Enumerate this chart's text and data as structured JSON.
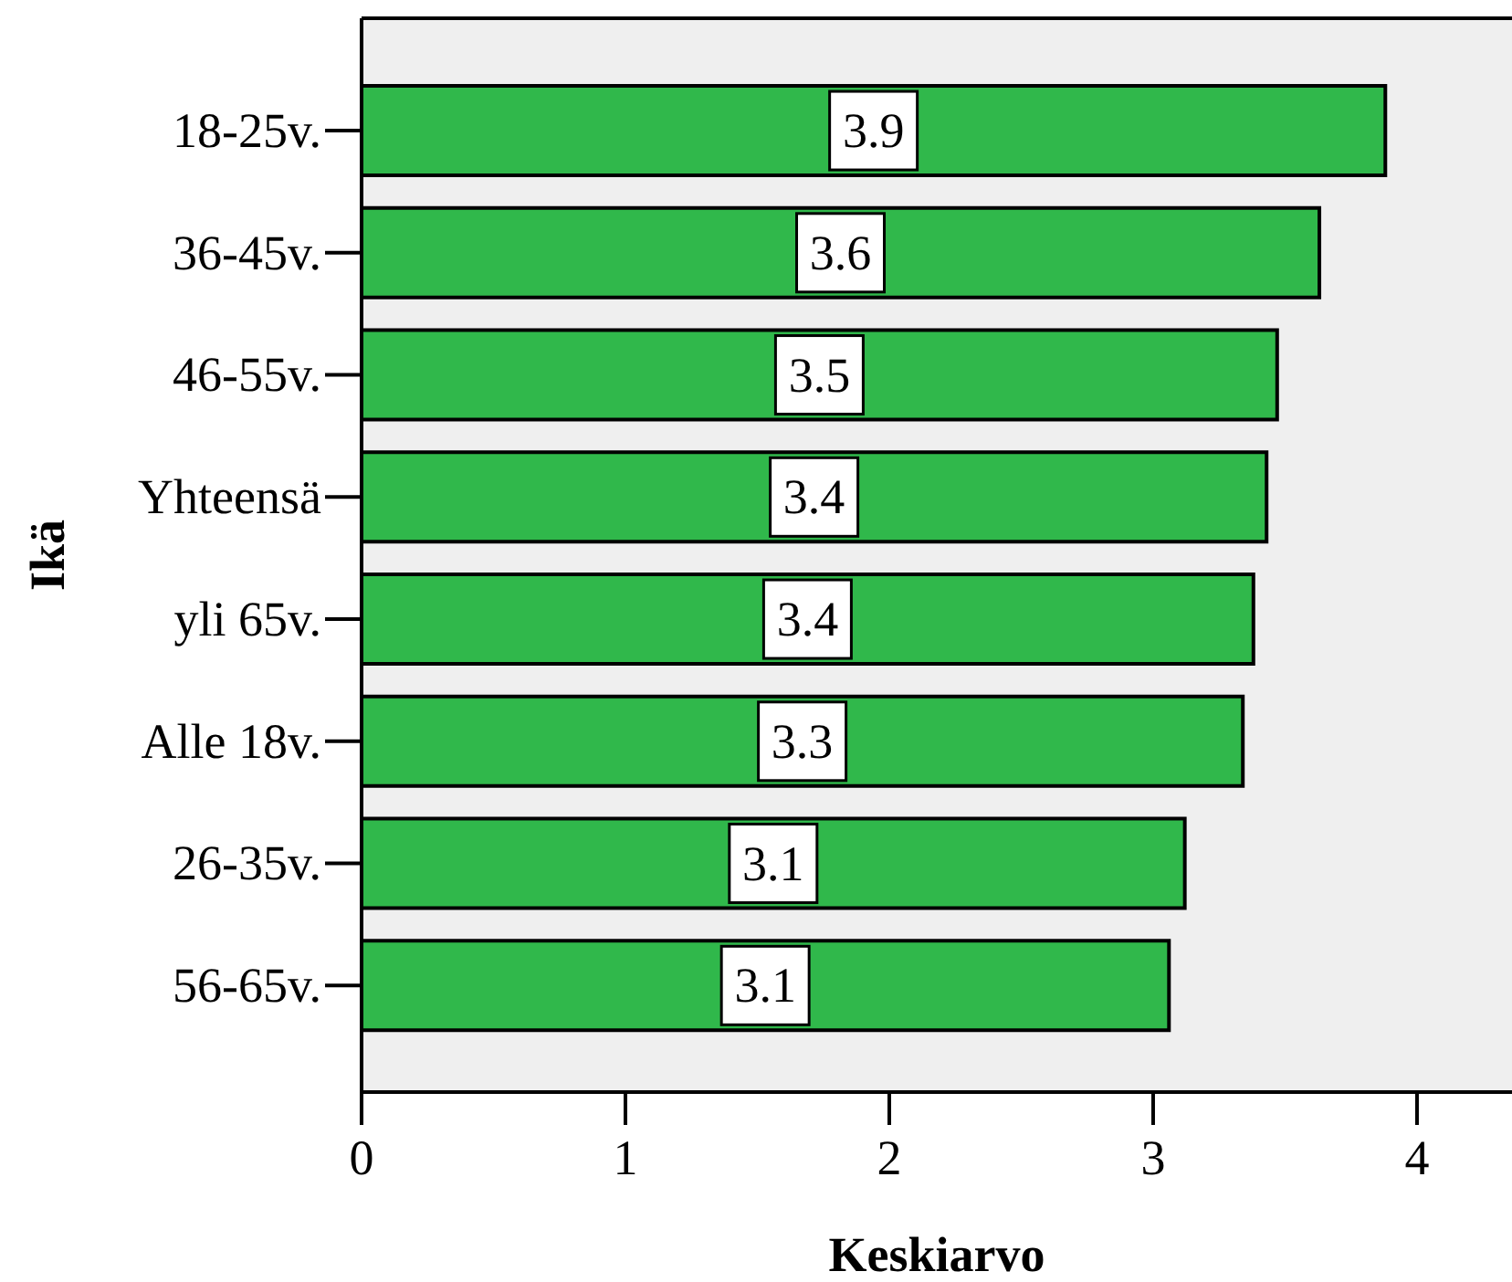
{
  "chart_data": {
    "type": "bar",
    "orientation": "horizontal",
    "xlabel": "Keskiarvo",
    "ylabel": "Ikä",
    "categories": [
      "18-25v.",
      "36-45v.",
      "46-55v.",
      "Yhteensä",
      "yli 65v.",
      "Alle 18v.",
      "26-35v.",
      "56-65v."
    ],
    "values": [
      3.88,
      3.63,
      3.47,
      3.43,
      3.38,
      3.34,
      3.12,
      3.06
    ],
    "value_labels": [
      "3.9",
      "3.6",
      "3.5",
      "3.4",
      "3.4",
      "3.3",
      "3.1",
      "3.1"
    ],
    "color": "#30b84b",
    "xlim": [
      0,
      4.36
    ],
    "xticks": [
      0,
      1,
      2,
      3,
      4
    ]
  }
}
